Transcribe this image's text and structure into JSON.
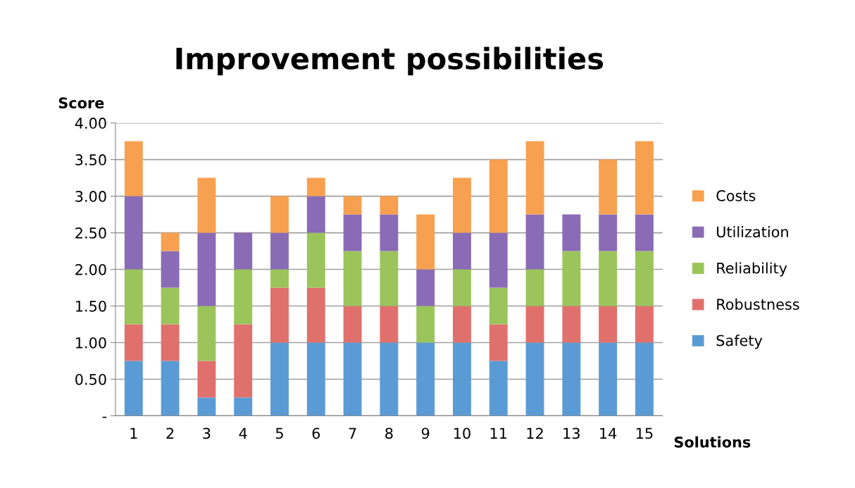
{
  "chart_data": {
    "type": "bar",
    "title": "Improvement possibilities",
    "xlabel": "Solutions",
    "ylabel": "Score",
    "categories": [
      "1",
      "2",
      "3",
      "4",
      "5",
      "6",
      "7",
      "8",
      "9",
      "10",
      "11",
      "12",
      "13",
      "14",
      "15"
    ],
    "stacked": true,
    "series": [
      {
        "name": "Safety",
        "color": "#5b9bd5",
        "values": [
          0.75,
          0.75,
          0.25,
          0.25,
          1,
          1,
          1,
          1,
          1,
          1,
          0.75,
          1,
          1,
          1,
          1
        ]
      },
      {
        "name": "Robustness",
        "color": "#e0706c",
        "values": [
          0.5,
          0.5,
          0.5,
          1,
          0.75,
          0.75,
          0.5,
          0.5,
          0,
          0.5,
          0.5,
          0.5,
          0.5,
          0.5,
          0.5
        ]
      },
      {
        "name": "Reliability",
        "color": "#9bc45a",
        "values": [
          0.75,
          0.5,
          0.75,
          0.75,
          0.25,
          0.75,
          0.75,
          0.75,
          0.5,
          0.5,
          0.5,
          0.5,
          0.75,
          0.75,
          0.75
        ]
      },
      {
        "name": "Utilization",
        "color": "#8a6bb5",
        "values": [
          1,
          0.5,
          1,
          0.5,
          0.5,
          0.5,
          0.5,
          0.5,
          0.5,
          0.5,
          0.75,
          0.75,
          0.5,
          0.5,
          0.5
        ]
      },
      {
        "name": "Costs",
        "color": "#f7a050",
        "values": [
          0.75,
          0.25,
          0.75,
          0,
          0.5,
          0.25,
          0.25,
          0.25,
          0.75,
          0.75,
          1,
          1,
          0,
          0.75,
          1
        ]
      }
    ],
    "ylim": [
      0,
      4
    ],
    "yticks": [
      {
        "value": 0,
        "label": "-"
      },
      {
        "value": 0.5,
        "label": "0.50"
      },
      {
        "value": 1,
        "label": "1.00"
      },
      {
        "value": 1.5,
        "label": "1.50"
      },
      {
        "value": 2,
        "label": "2.00"
      },
      {
        "value": 2.5,
        "label": "2.50"
      },
      {
        "value": 3,
        "label": "3.00"
      },
      {
        "value": 3.5,
        "label": "3.50"
      },
      {
        "value": 4,
        "label": "4.00"
      }
    ],
    "grid": "y",
    "legend": "right"
  }
}
